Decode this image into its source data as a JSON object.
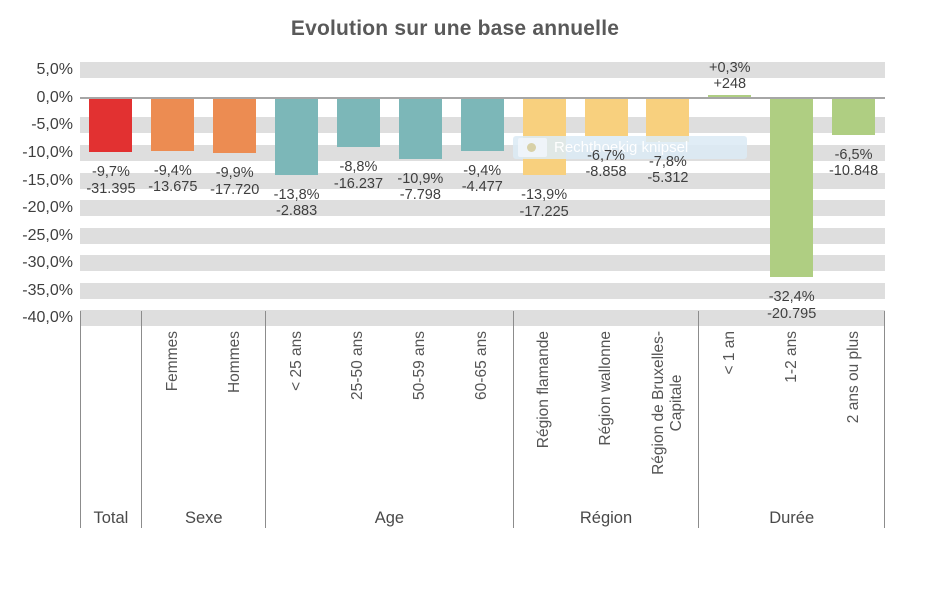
{
  "title": "Evolution sur une base annuelle",
  "watermark": {
    "text": "Rechthoekig knipsel"
  },
  "colors": {
    "total": "#E23131",
    "sexe": "#EC8C52",
    "age": "#7CB7B8",
    "region": "#F8D07E",
    "duree": "#AFCE82",
    "stripe": "#DEDEDE",
    "axis_line": "#A6A6A6",
    "separator": "#8C8C8C",
    "text": "#3F3F3F",
    "category_text": "#555555",
    "title_text": "#595959"
  },
  "chart_data": {
    "type": "bar",
    "title": "Evolution sur une base annuelle",
    "xlabel": "",
    "ylabel": "",
    "y_unit": "%",
    "ylim": [
      -40,
      5
    ],
    "grid": "horizontal-stripes",
    "legend": null,
    "y_ticks": [
      {
        "value": 5,
        "label": "5,0%"
      },
      {
        "value": 0,
        "label": "0,0%"
      },
      {
        "value": -5,
        "label": "-5,0%"
      },
      {
        "value": -10,
        "label": "-10,0%"
      },
      {
        "value": -15,
        "label": "-15,0%"
      },
      {
        "value": -20,
        "label": "-20,0%"
      },
      {
        "value": -25,
        "label": "-25,0%"
      },
      {
        "value": -30,
        "label": "-30,0%"
      },
      {
        "value": -35,
        "label": "-35,0%"
      },
      {
        "value": -40,
        "label": "-40,0%"
      }
    ],
    "groups": [
      {
        "label": "Total",
        "color": "#E23131",
        "bars": [
          {
            "category": "",
            "pct": -9.7,
            "pct_label": "-9,7%",
            "value": -31395,
            "value_label": "-31.395"
          }
        ]
      },
      {
        "label": "Sexe",
        "color": "#EC8C52",
        "bars": [
          {
            "category": "Femmes",
            "pct": -9.4,
            "pct_label": "-9,4%",
            "value": -13675,
            "value_label": "-13.675"
          },
          {
            "category": "Hommes",
            "pct": -9.9,
            "pct_label": "-9,9%",
            "value": -17720,
            "value_label": "-17.720"
          }
        ]
      },
      {
        "label": "Age",
        "color": "#7CB7B8",
        "bars": [
          {
            "category": "< 25 ans",
            "pct": -13.8,
            "pct_label": "-13,8%",
            "value": -2883,
            "value_label": "-2.883"
          },
          {
            "category": "25-50 ans",
            "pct": -8.8,
            "pct_label": "-8,8%",
            "value": -16237,
            "value_label": "-16.237"
          },
          {
            "category": "50-59 ans",
            "pct": -10.9,
            "pct_label": "-10,9%",
            "value": -7798,
            "value_label": "-7.798"
          },
          {
            "category": "60-65 ans",
            "pct": -9.4,
            "pct_label": "-9,4%",
            "value": -4477,
            "value_label": "-4.477"
          }
        ]
      },
      {
        "label": "Région",
        "color": "#F8D07E",
        "bars": [
          {
            "category": "Région flamande",
            "pct": -13.9,
            "pct_label": "-13,9%",
            "value": -17225,
            "value_label": "-17.225"
          },
          {
            "category": "Région wallonne",
            "pct": -6.7,
            "pct_label": "-6,7%",
            "value": -8858,
            "value_label": "-8.858"
          },
          {
            "category": "Région de Bruxelles-\nCapitale",
            "pct": -7.8,
            "pct_label": "-7,8%",
            "value": -5312,
            "value_label": "-5.312"
          }
        ]
      },
      {
        "label": "Durée",
        "color": "#AFCE82",
        "bars": [
          {
            "category": "< 1 an",
            "pct": 0.3,
            "pct_label": "+0,3%",
            "value": 248,
            "value_label": "+248"
          },
          {
            "category": "1-2 ans",
            "pct": -32.4,
            "pct_label": "-32,4%",
            "value": -20795,
            "value_label": "-20.795"
          },
          {
            "category": "2 ans ou plus",
            "pct": -6.5,
            "pct_label": "-6,5%",
            "value": -10848,
            "value_label": "-10.848"
          }
        ]
      }
    ]
  }
}
